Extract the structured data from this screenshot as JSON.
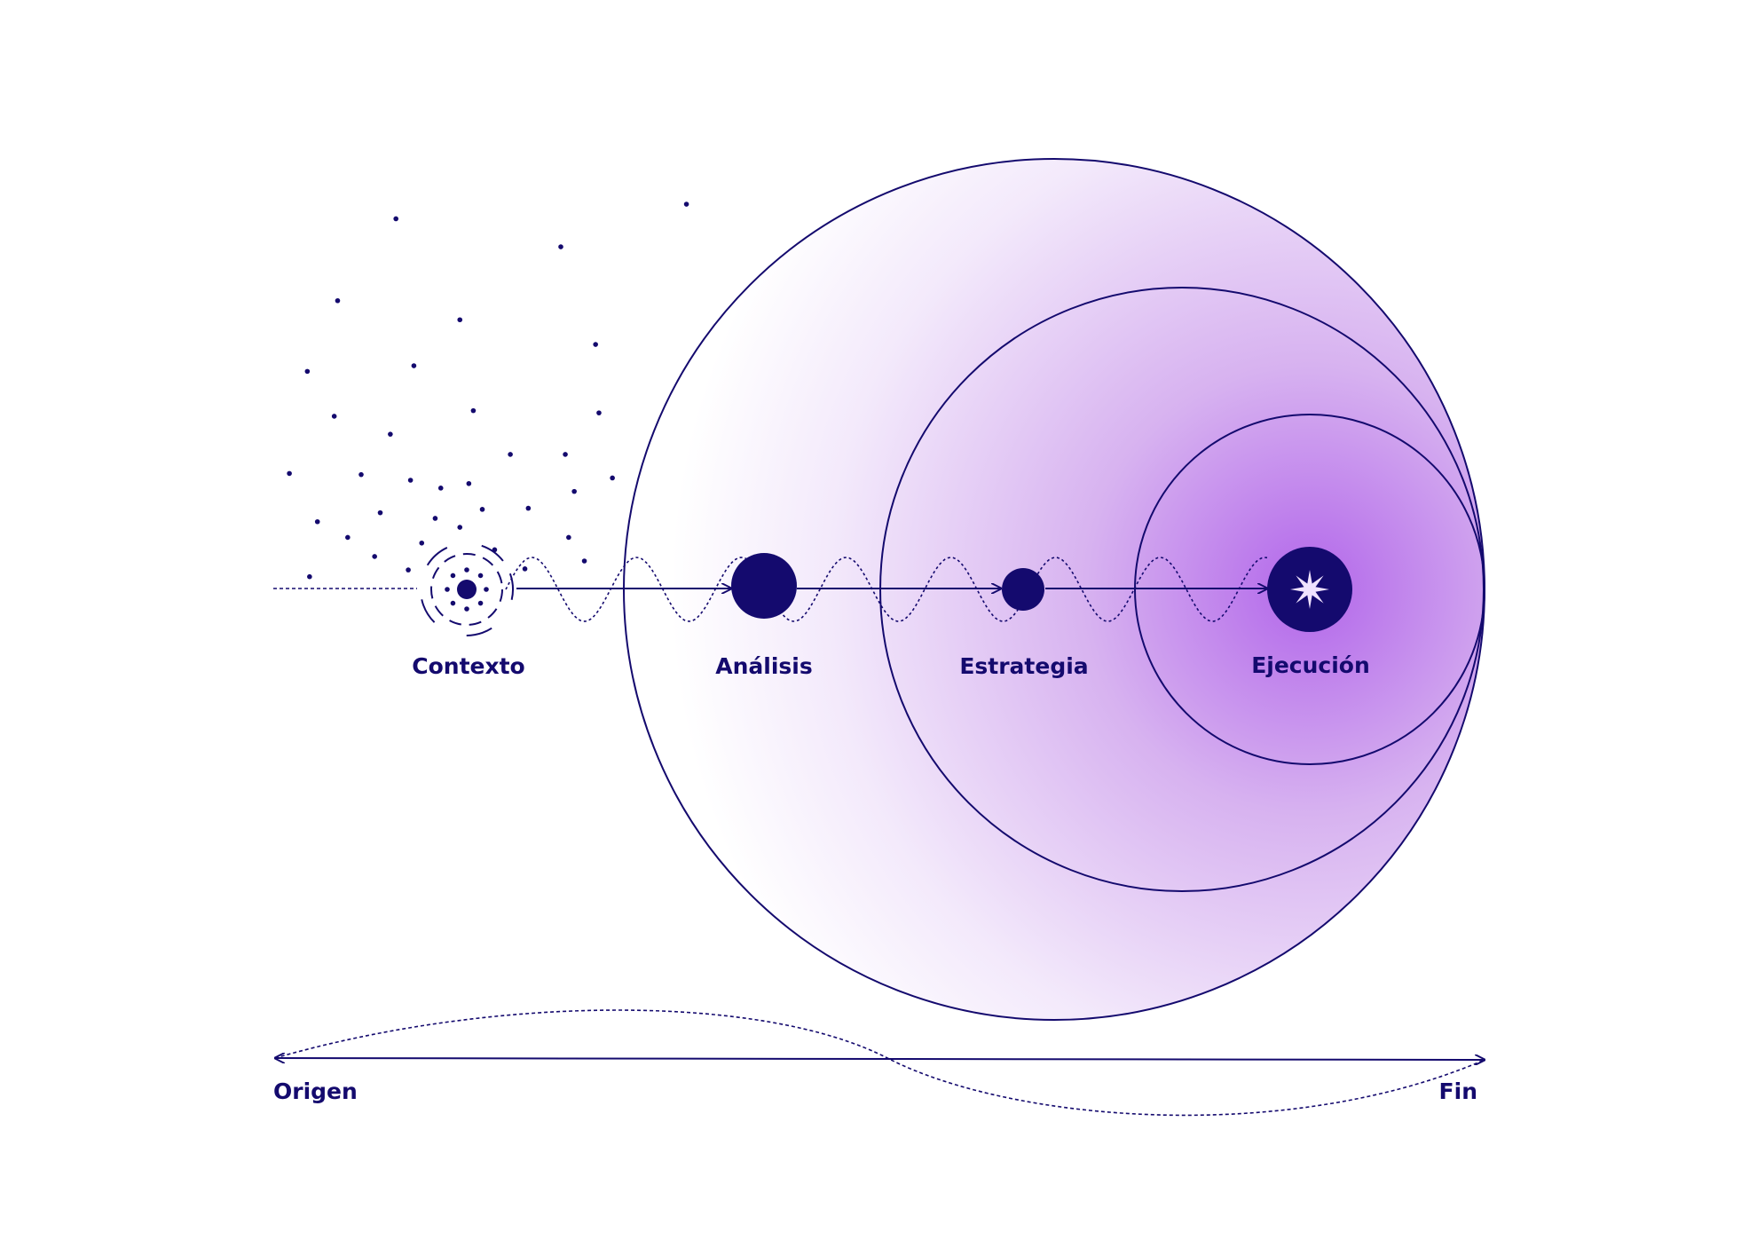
{
  "nodes": [
    {
      "label": "Contexto"
    },
    {
      "label": "Análisis"
    },
    {
      "label": "Estrategia"
    },
    {
      "label": "Ejecución"
    }
  ],
  "timeline": {
    "start": "Origen",
    "end": "Fin"
  }
}
